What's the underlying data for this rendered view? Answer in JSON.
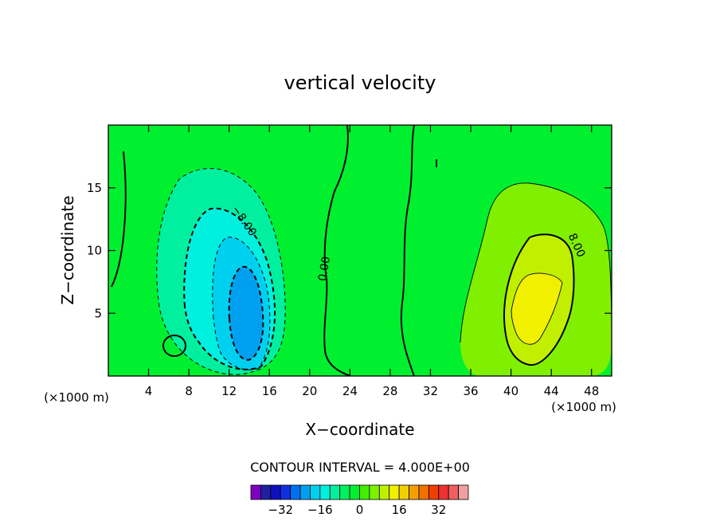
{
  "chart_data": {
    "type": "heatmap",
    "title": "vertical velocity",
    "xlabel": "X−coordinate",
    "ylabel": "Z−coordinate",
    "x_unit_left": "(×1000 m)",
    "x_unit_right": "(×1000 m)",
    "xlim": [
      0,
      50
    ],
    "ylim": [
      0,
      20
    ],
    "x_ticks": [
      4,
      8,
      12,
      16,
      20,
      24,
      28,
      32,
      36,
      40,
      44,
      48
    ],
    "y_ticks": [
      5,
      10,
      15
    ],
    "contour_interval_text": "CONTOUR INTERVAL = 4.000E+00",
    "contour_labels": [
      {
        "text": "−8.00",
        "x": 13.2,
        "y": 12.2,
        "angle": 55
      },
      {
        "text": "0.00",
        "x": 21.8,
        "y": 8.5,
        "angle": -80
      },
      {
        "text": "8.00",
        "x": 46.2,
        "y": 10.3,
        "angle": 65
      }
    ],
    "field_regions": [
      {
        "name": "updraft",
        "level": 8,
        "x": 42,
        "y": 9,
        "rx": 9,
        "ry": 7
      },
      {
        "name": "downdraft",
        "level": -16,
        "x": 13.5,
        "y": 7,
        "rx": 4,
        "ry": 9
      }
    ],
    "colorbar": {
      "levels": [
        -36,
        -32,
        -28,
        -24,
        -20,
        -16,
        -12,
        -8,
        -4,
        0,
        4,
        8,
        12,
        16,
        20,
        24,
        28,
        32,
        36
      ],
      "colors": [
        "#8000c0",
        "#2020a0",
        "#1010c0",
        "#1030e0",
        "#0070f0",
        "#00a0f0",
        "#00d0f0",
        "#00f0e0",
        "#00f0a0",
        "#00f060",
        "#00f030",
        "#40f000",
        "#80f000",
        "#c0f000",
        "#f0f000",
        "#f0d000",
        "#f0a000",
        "#f07000",
        "#f04000",
        "#f03030",
        "#f06060",
        "#f0a0a0"
      ],
      "tick_labels": [
        "−32",
        "−16",
        "0",
        "16",
        "32"
      ],
      "tick_values": [
        -32,
        -16,
        0,
        16,
        32
      ]
    }
  }
}
